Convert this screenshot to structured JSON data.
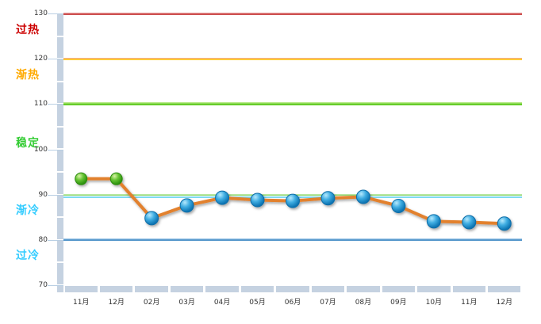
{
  "chart_data": {
    "type": "line",
    "title": "",
    "categories": [
      "11月",
      "12月",
      "02月",
      "03月",
      "04月",
      "05月",
      "06月",
      "07月",
      "08月",
      "09月",
      "10月",
      "11月",
      "12月"
    ],
    "series": [
      {
        "name": "",
        "values": [
          93.5,
          93.5,
          84.8,
          87.6,
          89.3,
          88.8,
          88.6,
          89.2,
          89.5,
          87.5,
          84.1,
          83.9,
          83.6
        ],
        "point_colors": [
          "green",
          "green",
          "blue",
          "blue",
          "blue",
          "blue",
          "blue",
          "blue",
          "blue",
          "blue",
          "blue",
          "blue",
          "blue"
        ]
      }
    ],
    "ylim": [
      70,
      130
    ],
    "y_ticks": [
      130,
      120,
      110,
      100,
      90,
      80,
      70
    ],
    "minor_tick_step": 5,
    "grid": false,
    "legend": false,
    "zones": [
      {
        "label": "过热",
        "color": "#cc0000",
        "from": 120,
        "to": 130
      },
      {
        "label": "渐热",
        "color": "#ffaa00",
        "from": 110,
        "to": 120
      },
      {
        "label": "稳定",
        "color": "#33cc33",
        "from": 90,
        "to": 110
      },
      {
        "label": "渐冷",
        "color": "#33ccff",
        "from": 80,
        "to": 90
      },
      {
        "label": "过冷",
        "color": "#33ccff",
        "from": 70,
        "to": 80
      }
    ],
    "threshold_lines": [
      {
        "value": 130,
        "color": "#cc4f4f",
        "highlight": "#e59090",
        "thickness": 3
      },
      {
        "value": 120,
        "color": "#ffcc33",
        "highlight": "#f4b083",
        "thickness": 3
      },
      {
        "value": 110,
        "color": "#66cc29",
        "highlight": "#b5e884",
        "thickness": 4
      },
      {
        "value": 90,
        "color": "#8fd971",
        "highlight": "#bce8a6",
        "thickness": 2
      },
      {
        "value": 89.4,
        "color": "#7ed9f2",
        "highlight": "",
        "thickness": 2
      },
      {
        "value": 80,
        "color": "#4f93c9",
        "highlight": "#9ec7e8",
        "thickness": 3
      }
    ],
    "line_style": {
      "color": "#e2812e",
      "width": 4
    },
    "marker_styles": {
      "green": {
        "stops": [
          "#d8f3a6",
          "#66c433",
          "#2f9411"
        ],
        "border": "#2c8a10",
        "radius": 7.5
      },
      "blue": {
        "stops": [
          "#b5e9fd",
          "#3fade2",
          "#0f76b4"
        ],
        "border": "#0e6da8",
        "radius": 8.5
      }
    },
    "axis_colors": {
      "band": "#c5d2e1",
      "tick_line": "#b9cfe3",
      "tick_label": "#333333"
    }
  }
}
